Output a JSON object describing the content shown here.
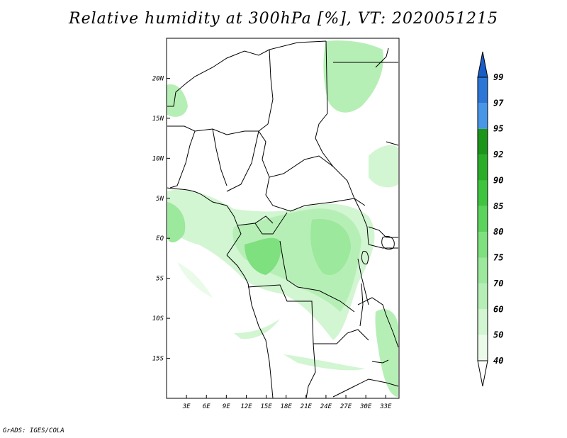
{
  "title": "Relative humidity at 300hPa [%], VT: 2020051215",
  "footer": "GrADS: IGES/COLA",
  "map": {
    "lon_range": [
      0,
      35
    ],
    "lat_range": [
      -20,
      25
    ],
    "lat_ticks": [
      {
        "value": 20,
        "label": "20N"
      },
      {
        "value": 15,
        "label": "15N"
      },
      {
        "value": 10,
        "label": "10N"
      },
      {
        "value": 5,
        "label": "5N"
      },
      {
        "value": 0,
        "label": "EQ"
      },
      {
        "value": -5,
        "label": "5S"
      },
      {
        "value": -10,
        "label": "10S"
      },
      {
        "value": -15,
        "label": "15S"
      }
    ],
    "lon_ticks": [
      {
        "value": 3,
        "label": "3E"
      },
      {
        "value": 6,
        "label": "6E"
      },
      {
        "value": 9,
        "label": "9E"
      },
      {
        "value": 12,
        "label": "12E"
      },
      {
        "value": 15,
        "label": "15E"
      },
      {
        "value": 18,
        "label": "18E"
      },
      {
        "value": 21,
        "label": "21E"
      },
      {
        "value": 24,
        "label": "24E"
      },
      {
        "value": 27,
        "label": "27E"
      },
      {
        "value": 30,
        "label": "30E"
      },
      {
        "value": 33,
        "label": "33E"
      }
    ]
  },
  "colorbar": {
    "levels": [
      "40",
      "50",
      "60",
      "70",
      "75",
      "80",
      "85",
      "90",
      "92",
      "95",
      "97",
      "99"
    ],
    "colors": [
      "#eafbea",
      "#d2f5d2",
      "#b6efb6",
      "#9ce89c",
      "#7ee07e",
      "#5cd35c",
      "#3fc43f",
      "#2aae2a",
      "#1b961b",
      "#4896e8",
      "#2c76d8",
      "#1a5cc6"
    ]
  }
}
